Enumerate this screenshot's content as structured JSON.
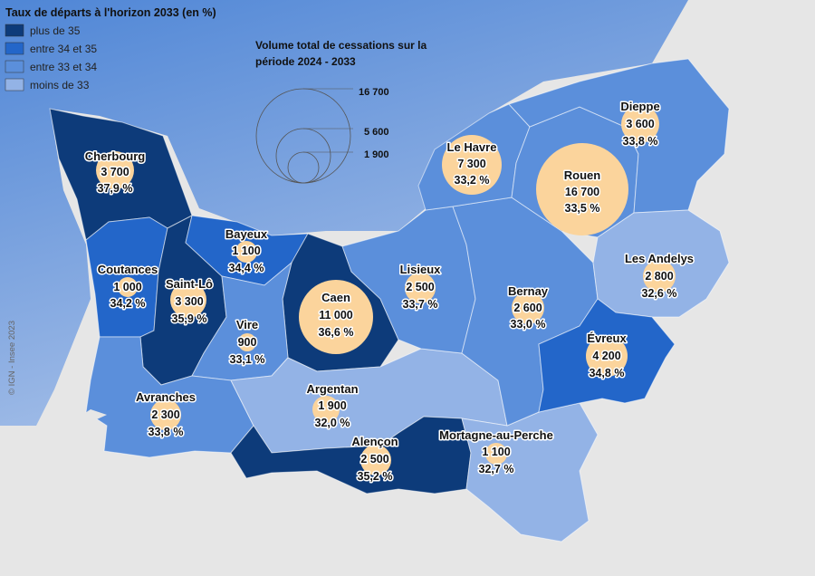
{
  "legend": {
    "title": "Taux de départs à l'horizon 2033 (en %)",
    "classes": [
      {
        "label": "plus de 35",
        "color": "#0d3b7a"
      },
      {
        "label": "entre 34 et 35",
        "color": "#2366c9"
      },
      {
        "label": "entre 33 et 34",
        "color": "#5b8fdb"
      },
      {
        "label": "moins de 33",
        "color": "#93b3e6"
      }
    ]
  },
  "bubble_legend": {
    "title_line1": "Volume total de cessations sur la",
    "title_line2": "période 2024 - 2033",
    "values": [
      "16 700",
      "5 600",
      "1 900"
    ]
  },
  "zones": [
    {
      "name": "Cherbourg",
      "volume": "3 700",
      "rate": "37,9 %"
    },
    {
      "name": "Le Havre",
      "volume": "7 300",
      "rate": "33,2 %"
    },
    {
      "name": "Rouen",
      "volume": "16 700",
      "rate": "33,5 %"
    },
    {
      "name": "Dieppe",
      "volume": "3 600",
      "rate": "33,8 %"
    },
    {
      "name": "Bayeux",
      "volume": "1 100",
      "rate": "34,4 %"
    },
    {
      "name": "Coutances",
      "volume": "1 000",
      "rate": "34,2 %"
    },
    {
      "name": "Saint-Lô",
      "volume": "3 300",
      "rate": "35,9 %"
    },
    {
      "name": "Caen",
      "volume": "11 000",
      "rate": "36,6 %"
    },
    {
      "name": "Lisieux",
      "volume": "2 500",
      "rate": "33,7 %"
    },
    {
      "name": "Bernay",
      "volume": "2 600",
      "rate": "33,0 %"
    },
    {
      "name": "Les Andelys",
      "volume": "2 800",
      "rate": "32,6 %"
    },
    {
      "name": "Vire",
      "volume": "900",
      "rate": "33,1 %"
    },
    {
      "name": "Évreux",
      "volume": "4 200",
      "rate": "34,8 %"
    },
    {
      "name": "Avranches",
      "volume": "2 300",
      "rate": "33,8 %"
    },
    {
      "name": "Argentan",
      "volume": "1 900",
      "rate": "32,0 %"
    },
    {
      "name": "Alençon",
      "volume": "2 500",
      "rate": "35,2 %"
    },
    {
      "name": "Mortagne-au-Perche",
      "volume": "1 100",
      "rate": "32,7 %"
    }
  ],
  "credit": "© IGN - Insee 2023",
  "colors": {
    "bubble": "#fbd49c",
    "sea_top": "#c4d6f0",
    "sea_bottom": "#4f86d6",
    "land": "#e6e6e6"
  }
}
